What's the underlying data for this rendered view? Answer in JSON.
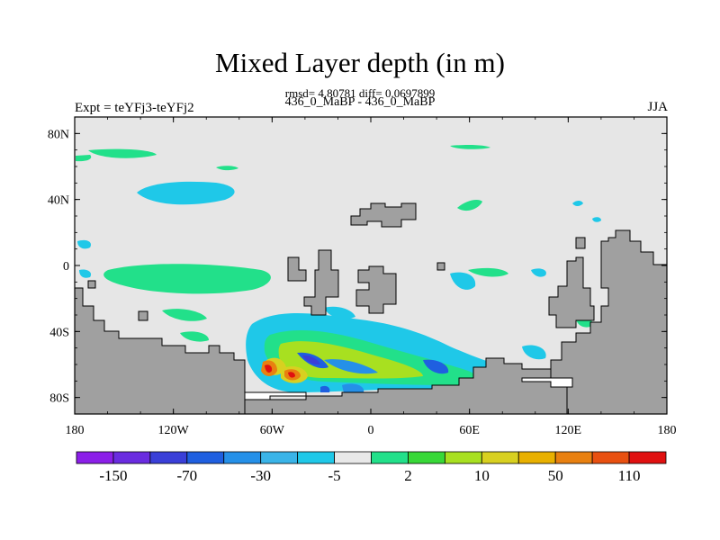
{
  "header": {
    "title": "Mixed Layer depth (in m)",
    "rmsd_line": "rmsd= 4.80781 diff= 0.0697899",
    "subtitle": "436_0_MaBP - 436_0_MaBP",
    "left_label": "Expt = teYFj3-teYFj2",
    "right_label": "JJA"
  },
  "map": {
    "lat_labels": [
      "80N",
      "40N",
      "0",
      "40S",
      "80S"
    ],
    "lon_labels": [
      "180",
      "120W",
      "60W",
      "0",
      "60E",
      "120E",
      "180"
    ],
    "lat_values": [
      80,
      40,
      0,
      -40,
      -80
    ],
    "lon_values": [
      -180,
      -120,
      -60,
      0,
      60,
      120,
      180
    ],
    "land_color": "#a0a0a0",
    "background_color": "#e6e6e6"
  },
  "colorbar": {
    "labels": [
      "-150",
      "-70",
      "-30",
      "-5",
      "2",
      "10",
      "50",
      "110"
    ],
    "colors": [
      "#8b1fe8",
      "#6a2ce0",
      "#3a3fd8",
      "#1f5fe0",
      "#2590e8",
      "#3ab4e8",
      "#1fc8e8",
      "#e8e8e8",
      "#22e08a",
      "#38d838",
      "#a8e020",
      "#d8d020",
      "#e8b000",
      "#e88010",
      "#e85010",
      "#e01010"
    ]
  }
}
